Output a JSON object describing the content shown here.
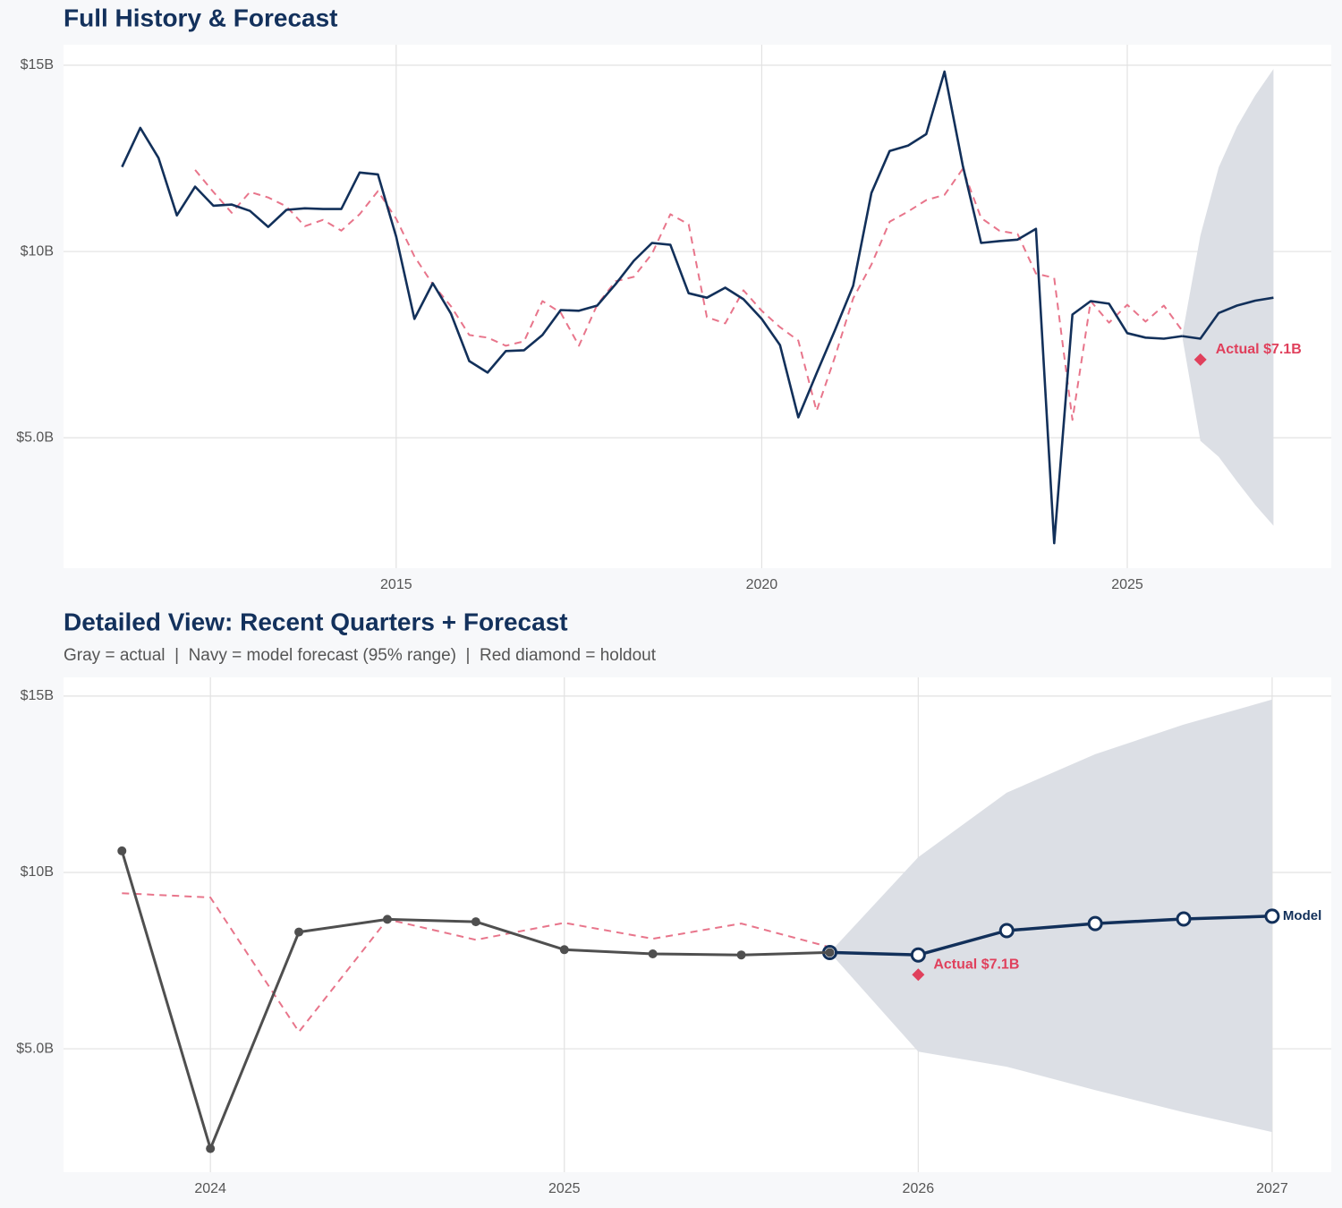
{
  "chart_data": [
    {
      "type": "line",
      "title": "Full History & Forecast",
      "grid": true,
      "xlim": [
        2010.45,
        2027.79
      ],
      "ylim": [
        1.5,
        15.55
      ],
      "xticks": [
        2015,
        2020,
        2025
      ],
      "yticks": [
        {
          "value": 5,
          "label": "$5.0B"
        },
        {
          "value": 10,
          "label": "$10B"
        },
        {
          "value": 15,
          "label": "$15B"
        }
      ],
      "band": {
        "color": "#dcdfe5",
        "x": [
          2025.75,
          2026,
          2026.25,
          2026.5,
          2026.75,
          2027
        ],
        "lower": [
          7.73,
          4.92,
          4.49,
          3.83,
          3.2,
          2.64
        ],
        "upper": [
          7.73,
          10.43,
          12.26,
          13.35,
          14.19,
          14.9
        ]
      },
      "series": [
        {
          "color": "#e8758b",
          "dash": true,
          "width": 2,
          "x": [
            2012.25,
            2012.5,
            2012.75,
            2013,
            2013.25,
            2013.5,
            2013.75,
            2014,
            2014.25,
            2014.5,
            2014.75,
            2015,
            2015.25,
            2015.5,
            2015.75,
            2016,
            2016.25,
            2016.5,
            2016.75,
            2017,
            2017.25,
            2017.5,
            2017.75,
            2018,
            2018.25,
            2018.5,
            2018.75,
            2019,
            2019.25,
            2019.5,
            2019.75,
            2020,
            2020.25,
            2020.5,
            2020.75,
            2021,
            2021.25,
            2021.5,
            2021.75,
            2022,
            2022.25,
            2022.5,
            2022.75,
            2023,
            2023.25,
            2023.5,
            2023.75,
            2024,
            2024.25,
            2024.5,
            2024.75,
            2025,
            2025.25,
            2025.5,
            2025.75
          ],
          "values": [
            12.19,
            11.6,
            11.04,
            11.6,
            11.45,
            11.21,
            10.68,
            10.85,
            10.56,
            11.0,
            11.62,
            10.88,
            9.87,
            9.12,
            8.53,
            7.76,
            7.69,
            7.47,
            7.59,
            8.67,
            8.36,
            7.47,
            8.57,
            9.2,
            9.32,
            9.94,
            11.0,
            10.73,
            8.24,
            8.07,
            8.96,
            8.41,
            7.97,
            7.61,
            5.72,
            7.16,
            8.74,
            9.65,
            10.8,
            11.07,
            11.38,
            11.52,
            12.22,
            10.9,
            10.56,
            10.47,
            9.41,
            9.29,
            5.48,
            8.67,
            8.09,
            8.57,
            8.12,
            8.55,
            7.88
          ]
        },
        {
          "color": "#12305a",
          "width": 2.6,
          "x": [
            2011.25,
            2011.5,
            2011.75,
            2012,
            2012.25,
            2012.5,
            2012.75,
            2013,
            2013.25,
            2013.5,
            2013.75,
            2014,
            2014.25,
            2014.5,
            2014.75,
            2015,
            2015.25,
            2015.5,
            2015.75,
            2016,
            2016.25,
            2016.5,
            2016.75,
            2017,
            2017.25,
            2017.5,
            2017.75,
            2018,
            2018.25,
            2018.5,
            2018.75,
            2019,
            2019.25,
            2019.5,
            2019.75,
            2020,
            2020.25,
            2020.5,
            2020.75,
            2021,
            2021.25,
            2021.5,
            2021.75,
            2022,
            2022.25,
            2022.5,
            2022.75,
            2023,
            2023.25,
            2023.5,
            2023.75,
            2024,
            2024.25,
            2024.5,
            2024.75,
            2025,
            2025.25,
            2025.5,
            2025.75
          ],
          "values": [
            12.27,
            13.32,
            12.51,
            10.97,
            11.74,
            11.23,
            11.26,
            11.09,
            10.66,
            11.12,
            11.16,
            11.14,
            11.14,
            12.12,
            12.07,
            10.4,
            8.19,
            9.15,
            8.33,
            7.06,
            6.75,
            7.33,
            7.35,
            7.76,
            8.43,
            8.41,
            8.55,
            9.12,
            9.75,
            10.23,
            10.18,
            8.88,
            8.76,
            9.03,
            8.72,
            8.19,
            7.49,
            5.55,
            6.73,
            7.88,
            9.08,
            11.57,
            12.7,
            12.84,
            13.15,
            14.83,
            12.31,
            10.23,
            10.28,
            10.32,
            10.61,
            2.17,
            8.31,
            8.67,
            8.6,
            7.81,
            7.69,
            7.66,
            7.73
          ]
        },
        {
          "color": "#12305a",
          "width": 2.6,
          "x": [
            2025.75,
            2026,
            2026.25,
            2026.5,
            2026.75,
            2027
          ],
          "values": [
            7.73,
            7.66,
            8.35,
            8.55,
            8.68,
            8.76
          ]
        }
      ],
      "holdout": {
        "x": 2026,
        "value": 7.1,
        "label": "Actual $7.1B",
        "color": "#e0405c"
      }
    },
    {
      "type": "line",
      "title": "Detailed View: Recent Quarters + Forecast",
      "subtitle": "Gray = actual  |  Navy = model forecast (95% range)  |  Red diamond = holdout",
      "grid": true,
      "xlim": [
        2023.585,
        2027.167
      ],
      "ylim": [
        1.5,
        15.53
      ],
      "xticks": [
        2024,
        2025,
        2026,
        2027
      ],
      "yticks": [
        {
          "value": 5,
          "label": "$5.0B"
        },
        {
          "value": 10,
          "label": "$10B"
        },
        {
          "value": 15,
          "label": "$15B"
        }
      ],
      "band": {
        "color": "#dcdfe5",
        "x": [
          2025.75,
          2026,
          2026.25,
          2026.5,
          2026.75,
          2027
        ],
        "lower": [
          7.73,
          4.92,
          4.49,
          3.83,
          3.2,
          2.64
        ],
        "upper": [
          7.73,
          10.43,
          12.26,
          13.35,
          14.19,
          14.9
        ]
      },
      "series": [
        {
          "color": "#e8758b",
          "dash": true,
          "width": 2,
          "x": [
            2023.75,
            2024,
            2024.25,
            2024.5,
            2024.75,
            2025,
            2025.25,
            2025.5,
            2025.75
          ],
          "values": [
            9.41,
            9.29,
            5.48,
            8.67,
            8.09,
            8.57,
            8.12,
            8.55,
            7.88
          ]
        },
        {
          "name": "Model",
          "color": "#12305a",
          "width": 3.5,
          "markers": "open",
          "x": [
            2025.75,
            2026,
            2026.25,
            2026.5,
            2026.75,
            2027
          ],
          "values": [
            7.73,
            7.66,
            8.35,
            8.55,
            8.68,
            8.76
          ]
        },
        {
          "color": "#4f4f4f",
          "width": 3,
          "markers": "filled",
          "x": [
            2023.75,
            2024,
            2024.25,
            2024.5,
            2024.75,
            2025,
            2025.25,
            2025.5,
            2025.75
          ],
          "values": [
            10.61,
            2.17,
            8.31,
            8.67,
            8.6,
            7.81,
            7.69,
            7.66,
            7.73
          ]
        }
      ],
      "holdout": {
        "x": 2026,
        "value": 7.1,
        "label": "Actual $7.1B",
        "color": "#e0405c"
      }
    }
  ]
}
